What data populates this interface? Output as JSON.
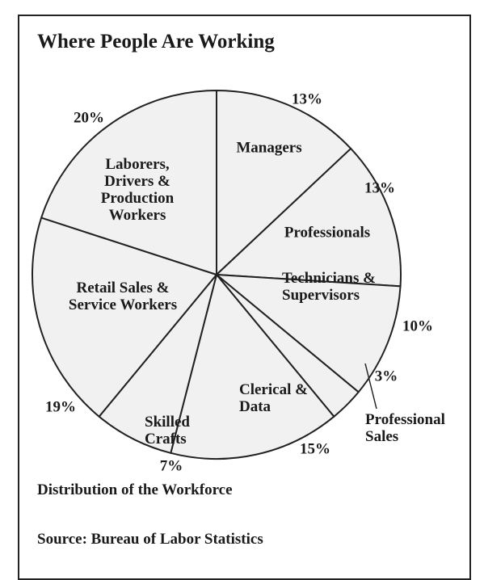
{
  "chart_data": {
    "type": "pie",
    "title": "Where People Are Working",
    "subtitle": "Distribution of the Workforce",
    "source": "Source:  Bureau of Labor Statistics",
    "categories": [
      "Managers",
      "Professionals",
      "Technicians & Supervisors",
      "Professional Sales",
      "Clerical & Data",
      "Skilled Crafts",
      "Retail Sales & Service Workers",
      "Laborers, Drivers & Production Workers"
    ],
    "values": [
      13,
      13,
      10,
      3,
      15,
      7,
      19,
      20
    ],
    "value_labels": [
      "13%",
      "13%",
      "10%",
      "3%",
      "15%",
      "7%",
      "19%",
      "20%"
    ],
    "color": "#f1f1f1"
  }
}
